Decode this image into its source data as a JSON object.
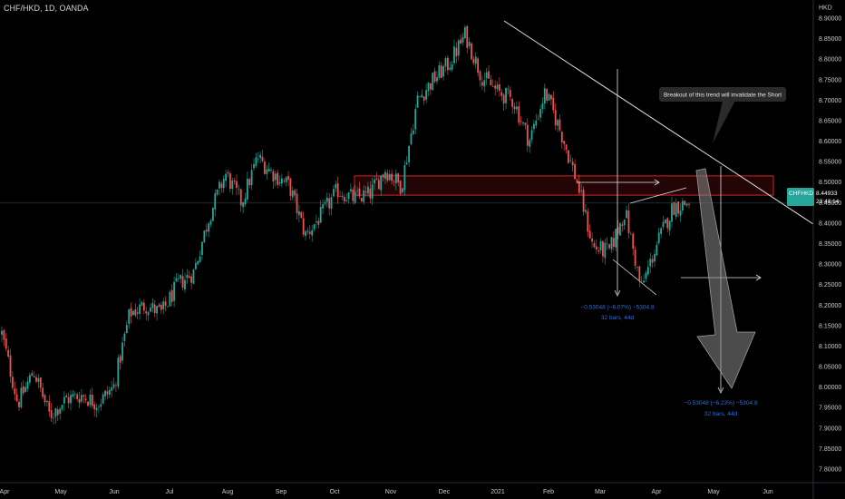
{
  "header": {
    "symbol": "CHF/HKD, 1D, OANDA"
  },
  "chart_data": {
    "type": "candlestick",
    "symbol": "CHF/HKD",
    "timeframe": "1D",
    "source": "OANDA",
    "y_unit": "HKD",
    "ylim": [
      7.76,
      8.91
    ],
    "y_ticks": [
      "7.80000",
      "7.85000",
      "7.90000",
      "7.95000",
      "8.00000",
      "8.05000",
      "8.10000",
      "8.15000",
      "8.20000",
      "8.25000",
      "8.30000",
      "8.35000",
      "8.40000",
      "8.45000",
      "8.50000",
      "8.55000",
      "8.60000",
      "8.65000",
      "8.70000",
      "8.75000",
      "8.80000",
      "8.85000",
      "8.90000"
    ],
    "x_ticks": [
      "Apr",
      "May",
      "Jun",
      "Jul",
      "Aug",
      "Sep",
      "Oct",
      "Nov",
      "Dec",
      "2021",
      "Feb",
      "Mar",
      "Apr",
      "May",
      "Jun"
    ],
    "close_path": [
      [
        "Apr",
        8.13
      ],
      [
        "Apr",
        7.96
      ],
      [
        "Apr",
        8.04
      ],
      [
        "Apr",
        7.93
      ],
      [
        "May",
        7.97
      ],
      [
        "May",
        7.98
      ],
      [
        "May",
        7.96
      ],
      [
        "Jun",
        8.0
      ],
      [
        "Jun",
        8.18
      ],
      [
        "Jun",
        8.2
      ],
      [
        "Jul",
        8.18
      ],
      [
        "Jul",
        8.25
      ],
      [
        "Jul",
        8.28
      ],
      [
        "Aug",
        8.42
      ],
      [
        "Aug",
        8.52
      ],
      [
        "Aug",
        8.45
      ],
      [
        "Sep",
        8.56
      ],
      [
        "Sep",
        8.52
      ],
      [
        "Sep",
        8.49
      ],
      [
        "Sep",
        8.37
      ],
      [
        "Oct",
        8.42
      ],
      [
        "Oct",
        8.48
      ],
      [
        "Oct",
        8.46
      ],
      [
        "Nov",
        8.47
      ],
      [
        "Nov",
        8.53
      ],
      [
        "Nov",
        8.49
      ],
      [
        "Dec",
        8.7
      ],
      [
        "Dec",
        8.75
      ],
      [
        "Dec",
        8.79
      ],
      [
        "2021",
        8.86
      ],
      [
        "2021",
        8.76
      ],
      [
        "2021",
        8.72
      ],
      [
        "Feb",
        8.7
      ],
      [
        "Feb",
        8.6
      ],
      [
        "Feb",
        8.72
      ],
      [
        "Feb",
        8.62
      ],
      [
        "Mar",
        8.5
      ],
      [
        "Mar",
        8.34
      ],
      [
        "Mar",
        8.33
      ],
      [
        "Mar",
        8.43
      ],
      [
        "Apr",
        8.24
      ],
      [
        "Apr",
        8.35
      ],
      [
        "Apr",
        8.44
      ],
      [
        "Apr",
        8.45
      ]
    ],
    "last_price": {
      "label": "CHFHKD",
      "value": "8.44933",
      "countdown": "23:43:14"
    },
    "annotations": {
      "callout": "Breakout of this trend will invalidate the Short",
      "measure_1": {
        "line1": "−0.53048 (−6.07%) −5304.8",
        "line2": "32 bars, 44d"
      },
      "measure_2": {
        "line1": "−0.53048 (−6.23%) −5304.8",
        "line2": "32 bars, 44d"
      }
    },
    "grid": false,
    "legend": "none"
  },
  "colors": {
    "background": "#000000",
    "up": "#26a69a",
    "down": "#ef5350",
    "zone_border": "#d0222a",
    "zone_fill": "#2a0606",
    "price_tag": "#26a69a",
    "text": "#d1d4dc",
    "measure_text": "#2f6fd6",
    "trendline": "#e0e0e0"
  }
}
